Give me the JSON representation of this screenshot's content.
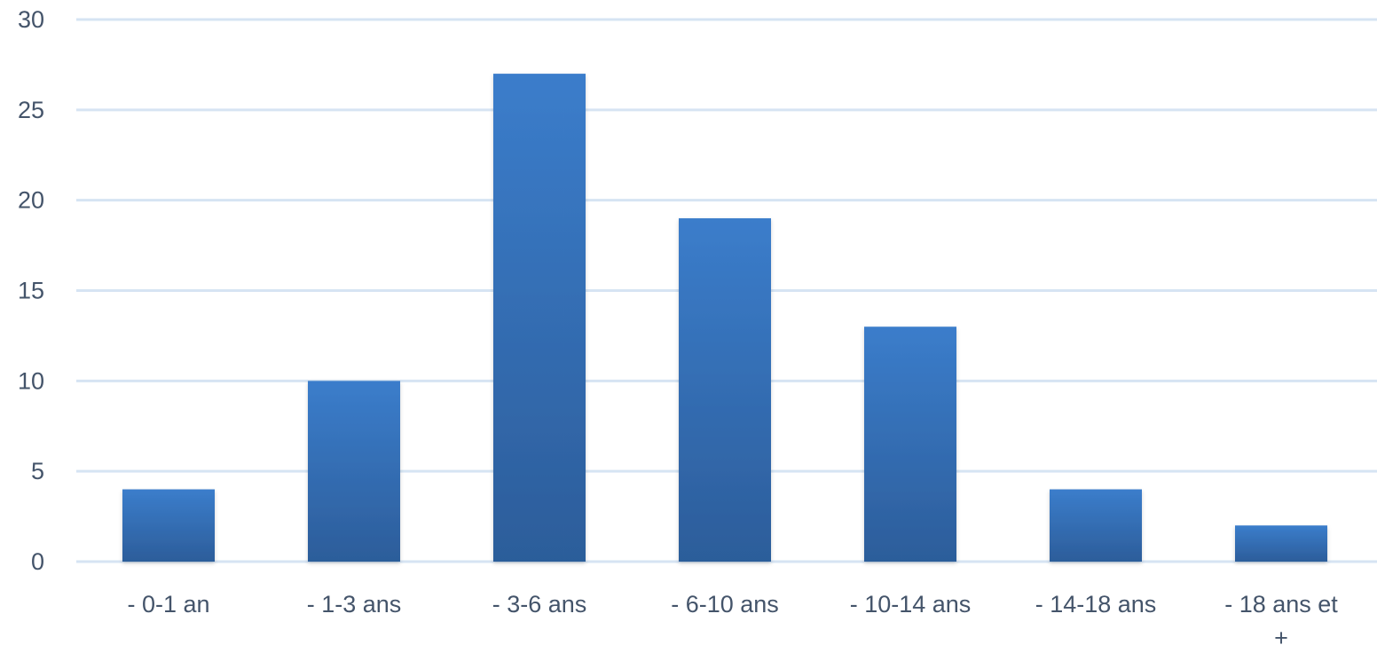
{
  "chart_data": {
    "type": "bar",
    "title": "",
    "xlabel": "",
    "ylabel": "",
    "categories": [
      "- 0-1 an",
      "- 1-3 ans",
      "- 3-6 ans",
      "- 6-10 ans",
      "- 10-14 ans",
      "- 14-18 ans",
      "- 18 ans et +"
    ],
    "values": [
      4,
      10,
      27,
      19,
      13,
      4,
      2
    ],
    "ylim": [
      0,
      30
    ],
    "yticks": [
      "0",
      "5",
      "10",
      "15",
      "20",
      "25",
      "30"
    ],
    "grid": true,
    "legend": "none",
    "colors": {
      "bar_top": "#3b7dcb",
      "bar_bottom": "#2c5d9a",
      "grid": "#d6e4f3",
      "text": "#44546a"
    }
  }
}
